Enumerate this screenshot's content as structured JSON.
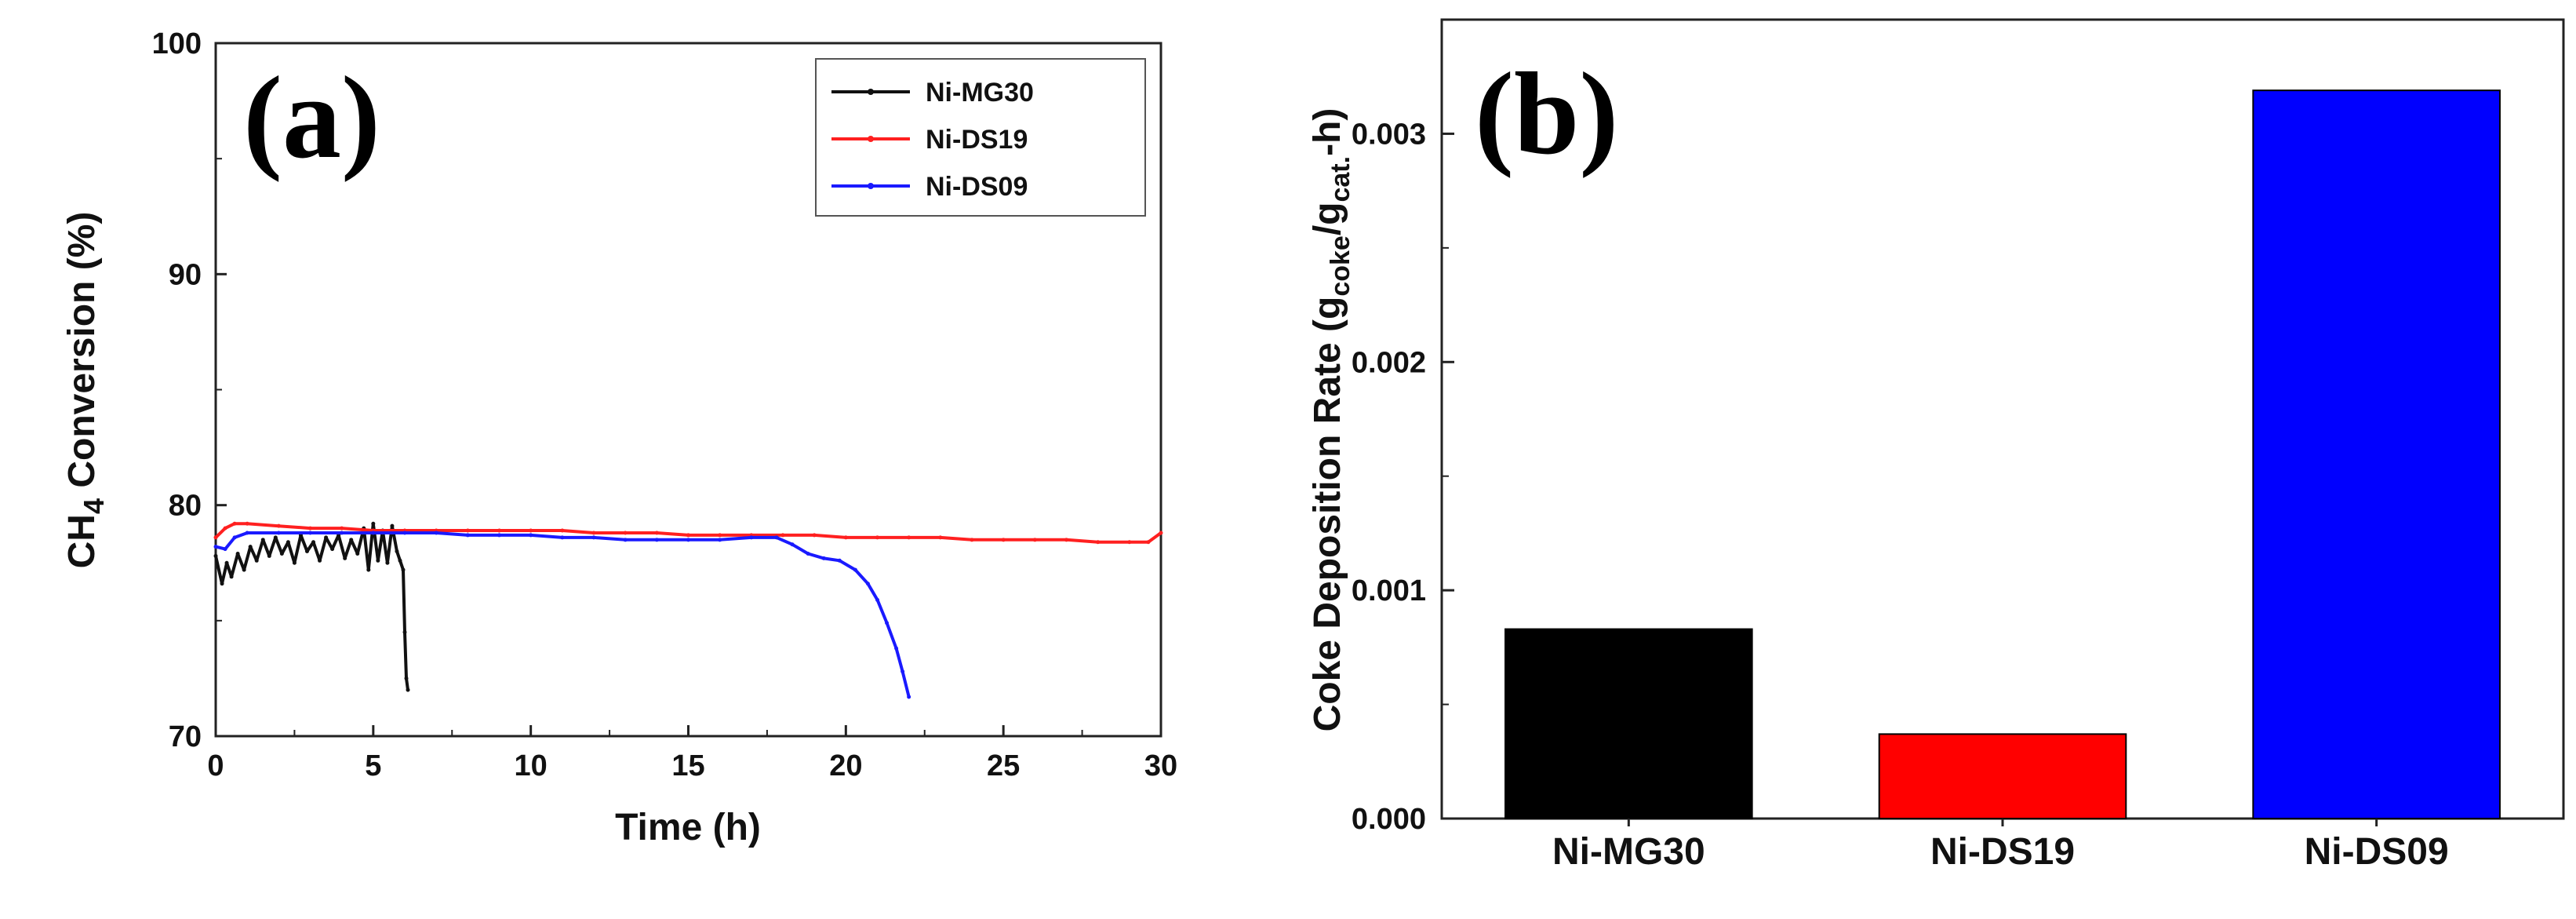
{
  "colors": {
    "black": "#111111",
    "red": "#ff2020",
    "blue": "#1a1aff",
    "bar_blue": "#0000ff",
    "bar_red": "#ff0000"
  },
  "chart_data": [
    {
      "panel": "(a)",
      "type": "line",
      "xlabel": "Time (h)",
      "ylabel_main": "CH",
      "ylabel_sub": "4",
      "ylabel_rest": " Conversion (%)",
      "xlim": [
        0,
        30
      ],
      "ylim": [
        70,
        100
      ],
      "xticks": [
        0,
        5,
        10,
        15,
        20,
        25,
        30
      ],
      "yticks": [
        70,
        80,
        90,
        100
      ],
      "legend_position": "top-right",
      "series": [
        {
          "name": "Ni-MG30",
          "color": "#111111",
          "x": [
            0,
            0.2,
            0.35,
            0.5,
            0.7,
            0.9,
            1.1,
            1.3,
            1.5,
            1.7,
            1.9,
            2.1,
            2.3,
            2.5,
            2.7,
            2.9,
            3.1,
            3.3,
            3.5,
            3.7,
            3.9,
            4.1,
            4.3,
            4.5,
            4.7,
            4.85,
            5.0,
            5.15,
            5.3,
            5.45,
            5.6,
            5.75,
            5.85,
            5.95,
            6.0,
            6.05,
            6.1
          ],
          "y": [
            77.8,
            76.6,
            77.5,
            76.9,
            77.9,
            77.2,
            78.2,
            77.6,
            78.5,
            77.8,
            78.6,
            77.9,
            78.4,
            77.5,
            78.7,
            78.0,
            78.4,
            77.6,
            78.6,
            78.1,
            78.7,
            77.7,
            78.5,
            77.9,
            79.0,
            77.2,
            79.2,
            77.6,
            78.9,
            77.5,
            79.1,
            78.0,
            77.6,
            77.2,
            74.5,
            72.5,
            72.0
          ]
        },
        {
          "name": "Ni-DS19",
          "color": "#ff2020",
          "x": [
            0,
            0.3,
            0.6,
            1.0,
            2,
            3,
            4,
            5,
            6,
            7,
            8,
            9,
            10,
            11,
            12,
            13,
            14,
            15,
            16,
            17,
            18,
            19,
            20,
            21,
            22,
            23,
            24,
            25,
            26,
            27,
            28,
            29,
            29.6,
            30
          ],
          "y": [
            78.6,
            79.0,
            79.2,
            79.2,
            79.1,
            79.0,
            79.0,
            78.9,
            78.9,
            78.9,
            78.9,
            78.9,
            78.9,
            78.9,
            78.8,
            78.8,
            78.8,
            78.7,
            78.7,
            78.7,
            78.7,
            78.7,
            78.6,
            78.6,
            78.6,
            78.6,
            78.5,
            78.5,
            78.5,
            78.5,
            78.4,
            78.4,
            78.4,
            78.8
          ]
        },
        {
          "name": "Ni-DS09",
          "color": "#1a1aff",
          "x": [
            0,
            0.3,
            0.6,
            1.0,
            2,
            3,
            4,
            5,
            6,
            7,
            8,
            9,
            10,
            11,
            12,
            13,
            14,
            15,
            16,
            17,
            17.8,
            18.3,
            18.8,
            19.3,
            19.8,
            20.3,
            20.7,
            21.0,
            21.3,
            21.6,
            21.8,
            22.0
          ],
          "y": [
            78.2,
            78.1,
            78.6,
            78.8,
            78.8,
            78.8,
            78.8,
            78.8,
            78.8,
            78.8,
            78.7,
            78.7,
            78.7,
            78.6,
            78.6,
            78.5,
            78.5,
            78.5,
            78.5,
            78.6,
            78.6,
            78.3,
            77.9,
            77.7,
            77.6,
            77.2,
            76.6,
            75.9,
            74.9,
            73.8,
            72.8,
            71.7
          ]
        }
      ]
    },
    {
      "panel": "(b)",
      "type": "bar",
      "ylabel_main": "Coke Deposition Rate (g",
      "ylabel_sub1": "coke",
      "ylabel_mid": "/g",
      "ylabel_sub2": "cat.",
      "ylabel_rest": "-h)",
      "categories": [
        "Ni-MG30",
        "Ni-DS19",
        "Ni-DS09"
      ],
      "values": [
        0.00083,
        0.00037,
        0.00319
      ],
      "colors": [
        "#000000",
        "#ff0000",
        "#0000ff"
      ],
      "ylim": [
        0,
        0.0035
      ],
      "yticks": [
        "0.000",
        "0.001",
        "0.002",
        "0.003"
      ],
      "ytick_values": [
        0,
        0.001,
        0.002,
        0.003
      ]
    }
  ]
}
